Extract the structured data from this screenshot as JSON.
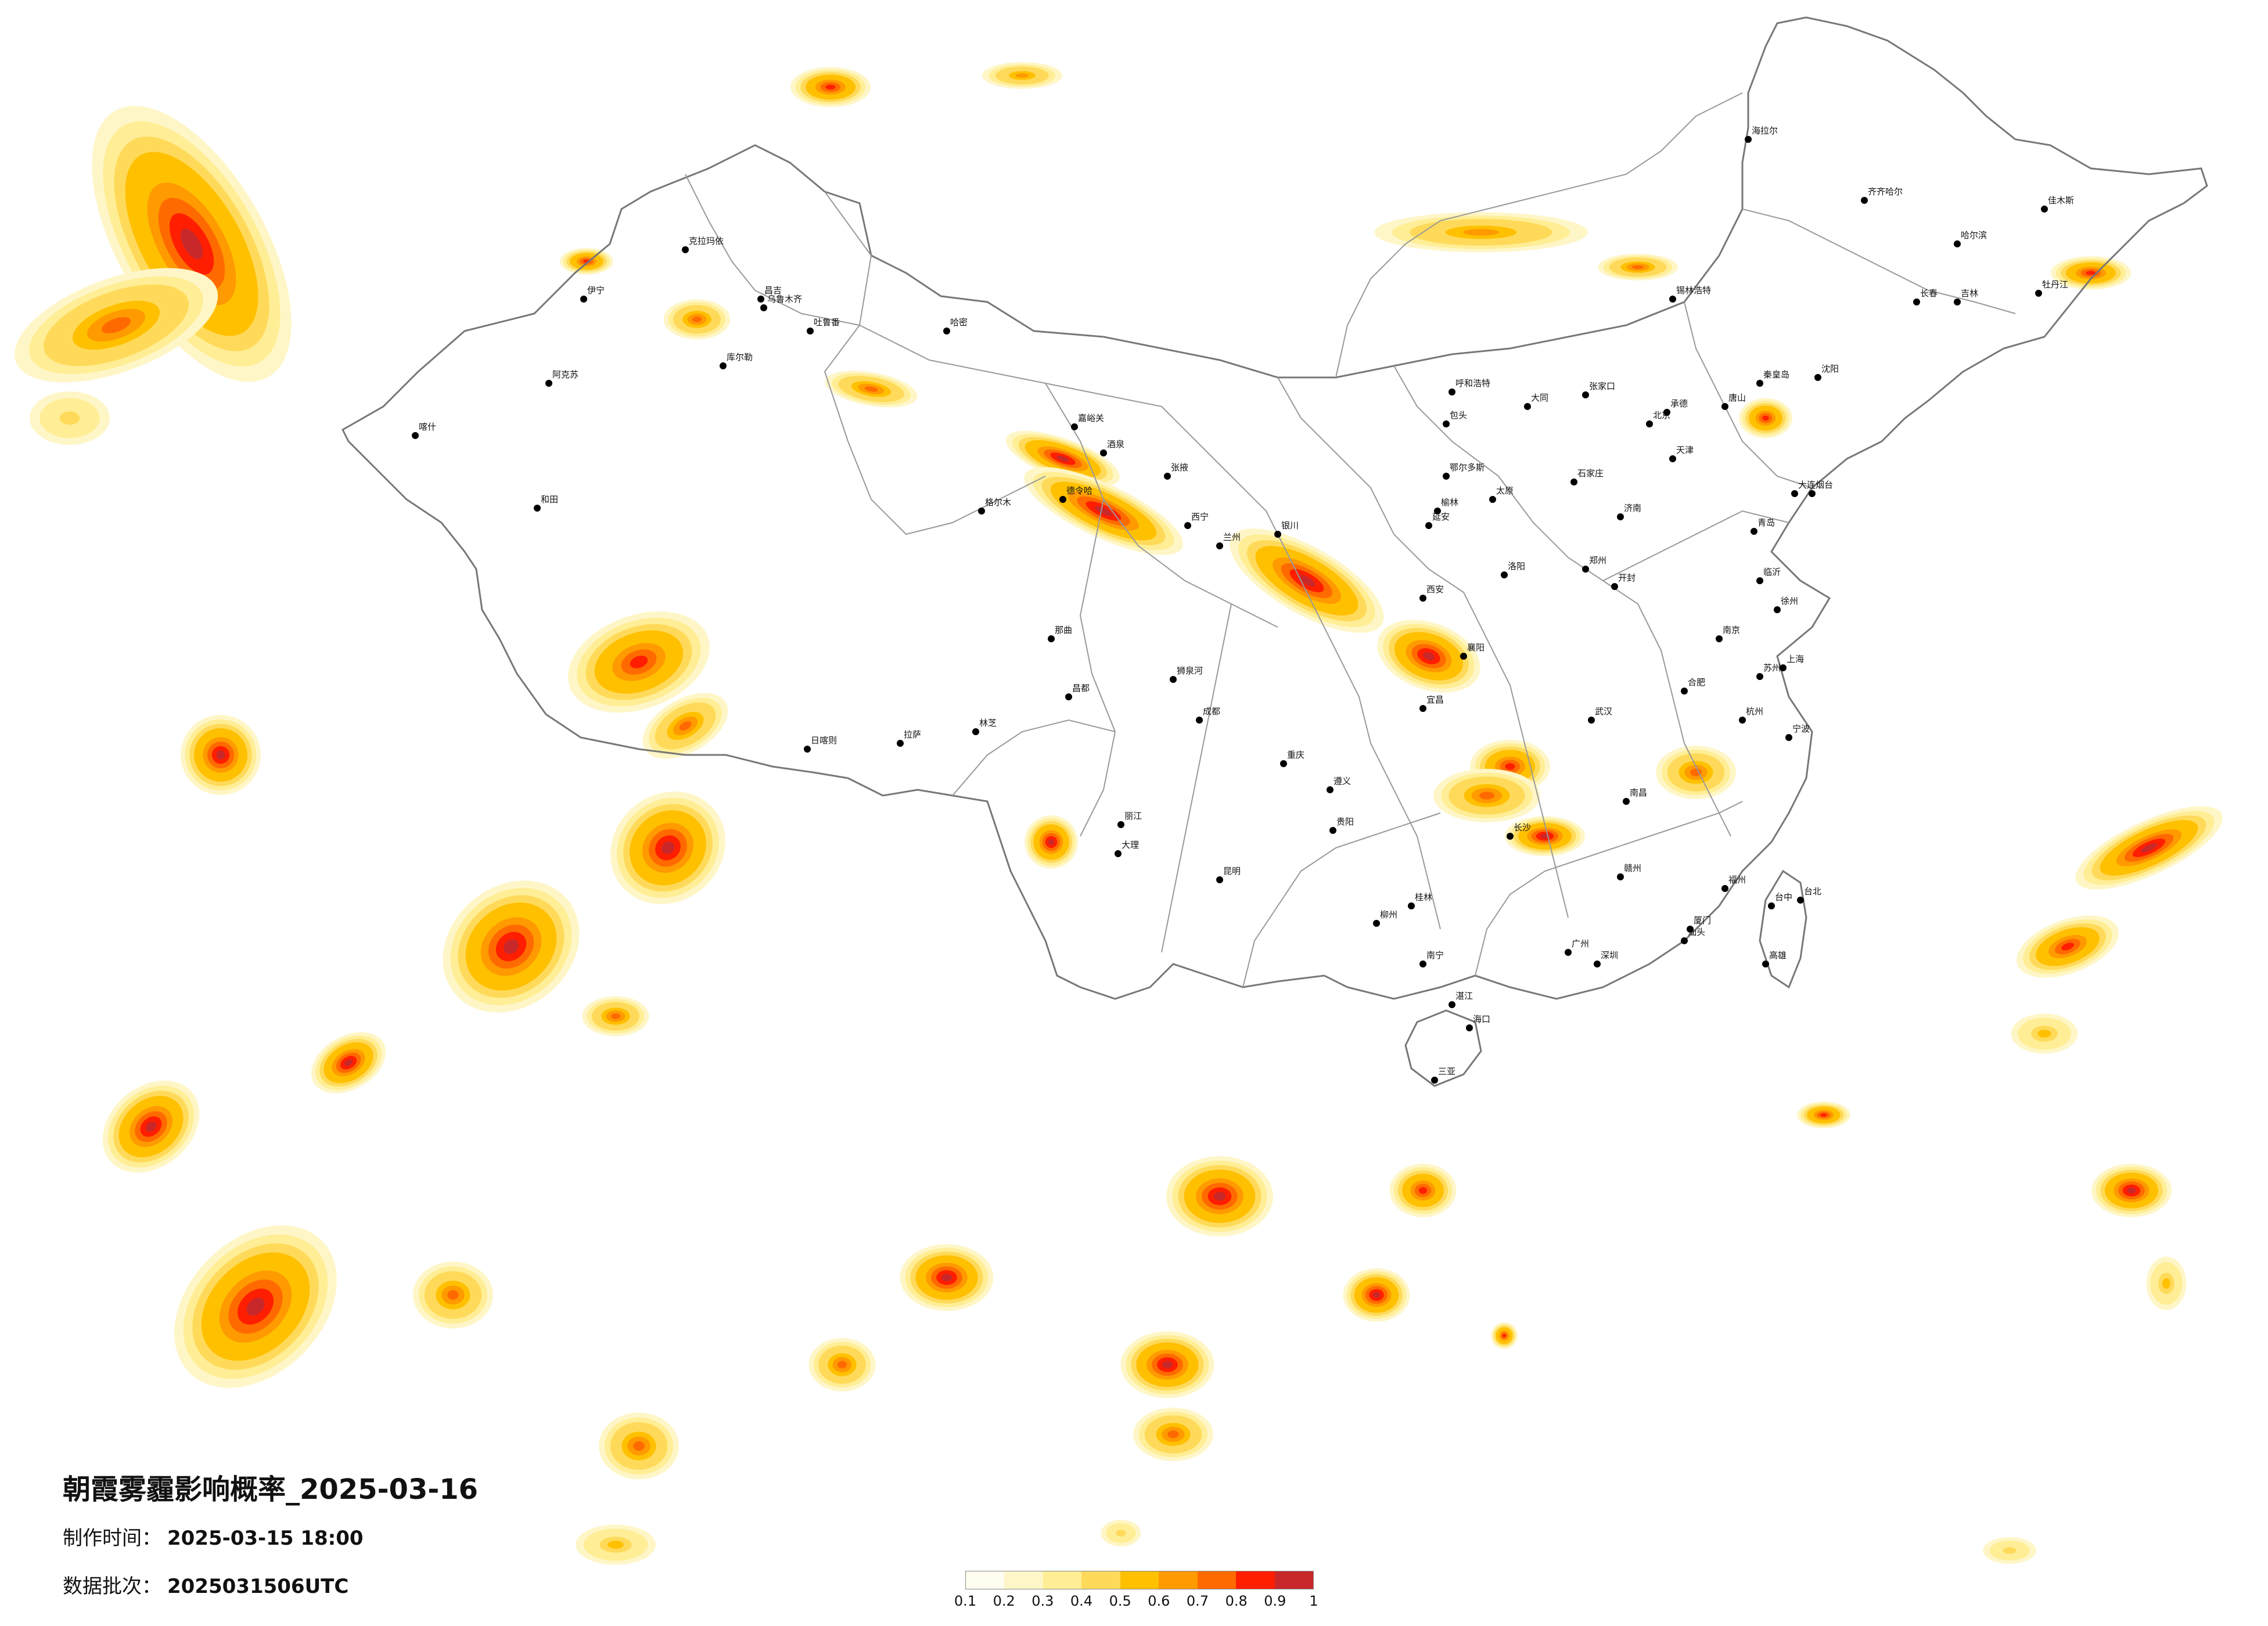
{
  "title": "朝霞雾霾影响概率_2025-03-16",
  "meta": {
    "made_label": "制作时间：",
    "made_value": "2025-03-15 18:00",
    "batch_label": "数据批次：",
    "batch_value": "2025031506UTC"
  },
  "legend": {
    "colors": [
      "#FFFDF0",
      "#FFF6C8",
      "#FFEE96",
      "#FFDA5A",
      "#FFC000",
      "#FF9A00",
      "#FF6A00",
      "#FF1E00",
      "#C8282A"
    ],
    "ticks": [
      "0.1",
      "0.2",
      "0.3",
      "0.4",
      "0.5",
      "0.6",
      "0.7",
      "0.8",
      "0.9",
      "1"
    ]
  },
  "cities": [
    "克拉玛依",
    "伊宁",
    "昌吉",
    "乌鲁木齐",
    "吐鲁番",
    "库尔勒",
    "阿克苏",
    "喀什",
    "和田",
    "哈密",
    "嘉峪关",
    "酒泉",
    "张掖",
    "德令哈",
    "格尔木",
    "西宁",
    "兰州",
    "银川",
    "呼和浩特",
    "包头",
    "鄂尔多斯",
    "榆林",
    "延安",
    "西安",
    "太原",
    "大同",
    "石家庄",
    "北京",
    "天津",
    "唐山",
    "秦皇岛",
    "张家口",
    "承德",
    "沈阳",
    "大连",
    "长春",
    "吉林",
    "哈尔滨",
    "齐齐哈尔",
    "牡丹江",
    "佳木斯",
    "海拉尔",
    "锡林浩特",
    "济南",
    "青岛",
    "烟台",
    "郑州",
    "洛阳",
    "开封",
    "合肥",
    "南京",
    "上海",
    "杭州",
    "宁波",
    "苏州",
    "武汉",
    "长沙",
    "南昌",
    "福州",
    "厦门",
    "广州",
    "深圳",
    "南宁",
    "海口",
    "三亚",
    "贵阳",
    "昆明",
    "成都",
    "重庆",
    "拉萨",
    "日喀则",
    "林芝",
    "那曲",
    "昌都",
    "狮泉河",
    "大理",
    "丽江",
    "桂林",
    "柳州",
    "台北",
    "台中",
    "高雄",
    "遵义",
    "宜昌",
    "襄阳",
    "徐州",
    "临沂",
    "赣州",
    "汕头",
    "湛江"
  ]
}
